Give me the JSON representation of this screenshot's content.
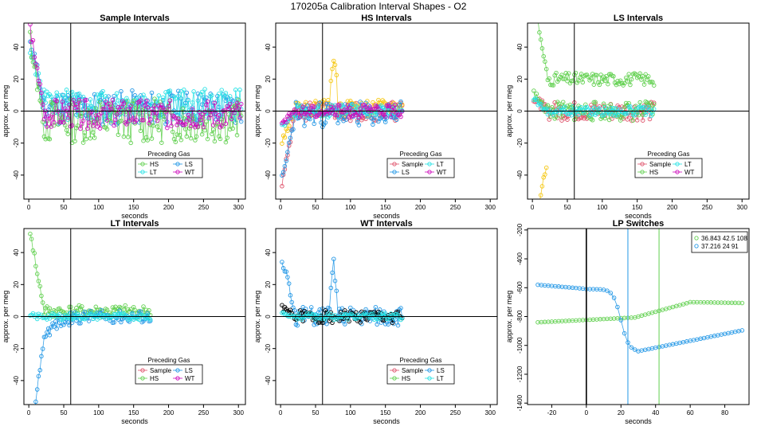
{
  "page_title": "170205a   Calibration Interval Shapes - O2",
  "colors": {
    "Sample": "#df536b",
    "HS": "#61d04f",
    "LS": "#2297e6",
    "LT": "#28e2e5",
    "WT": "#cd0bbc",
    "HS_yellow": "#f5c710",
    "black": "#000000"
  },
  "chart_data": [
    {
      "id": "sample",
      "type": "scatter",
      "title": "Sample Intervals",
      "xlabel": "seconds",
      "ylabel": "approx. per meg",
      "xlim": [
        -7,
        310
      ],
      "ylim": [
        -55,
        55
      ],
      "xticks": [
        0,
        50,
        100,
        150,
        200,
        250,
        300
      ],
      "yticks": [
        -40,
        -20,
        0,
        20,
        40
      ],
      "vline": 60,
      "hline": 0,
      "legend": {
        "title": "Preceding Gas",
        "entries": [
          "HS",
          "LS",
          "LT",
          "WT"
        ],
        "columns": 2
      },
      "series": [
        {
          "name": "LS",
          "color": "LS",
          "xmax": 305,
          "base": 2,
          "noise": 11,
          "spike": 48,
          "seed": 11
        },
        {
          "name": "LT",
          "color": "LT",
          "xmax": 305,
          "base": 4,
          "noise": 10,
          "spike": 40,
          "seed": 12
        },
        {
          "name": "HS",
          "color": "HS",
          "xmax": 305,
          "base": -6,
          "noise": 14,
          "spike": 55,
          "seed": 13
        },
        {
          "name": "WT",
          "color": "WT",
          "xmax": 305,
          "base": -2,
          "noise": 9,
          "spike": 60,
          "seed": 14
        }
      ]
    },
    {
      "id": "hs",
      "type": "scatter",
      "title": "HS Intervals",
      "xlabel": "seconds",
      "ylabel": "approx. per meg",
      "xlim": [
        -7,
        310
      ],
      "ylim": [
        -55,
        55
      ],
      "xticks": [
        0,
        50,
        100,
        150,
        200,
        250,
        300
      ],
      "yticks": [
        -40,
        -20,
        0,
        20,
        40
      ],
      "vline": 60,
      "hline": 0,
      "legend": {
        "title": "Preceding Gas",
        "entries": [
          "Sample",
          "LT",
          "LS",
          "WT"
        ],
        "columns": 2
      },
      "series": [
        {
          "name": "Sample",
          "color": "Sample",
          "xmax": 175,
          "base": 0,
          "noise": 6,
          "spike": -50,
          "seed": 21
        },
        {
          "name": "HS",
          "color": "HS_yellow",
          "xmax": 175,
          "base": 2,
          "noise": 5,
          "spike": -22,
          "bump": 32,
          "seed": 22
        },
        {
          "name": "LS",
          "color": "LS",
          "xmax": 175,
          "base": -2,
          "noise": 8,
          "spike": -45,
          "seed": 23
        },
        {
          "name": "LT",
          "color": "LT",
          "xmax": 175,
          "base": 0,
          "noise": 4,
          "spike": -10,
          "seed": 24
        },
        {
          "name": "WT",
          "color": "WT",
          "xmax": 175,
          "base": 0,
          "noise": 4,
          "spike": -8,
          "seed": 25
        }
      ]
    },
    {
      "id": "ls",
      "type": "scatter",
      "title": "LS Intervals",
      "xlabel": "seconds",
      "ylabel": "approx. per meg",
      "xlim": [
        -7,
        310
      ],
      "ylim": [
        -55,
        55
      ],
      "xticks": [
        0,
        50,
        100,
        150,
        200,
        250,
        300
      ],
      "yticks": [
        -40,
        -20,
        0,
        20,
        40
      ],
      "vline": 60,
      "hline": 0,
      "legend": {
        "title": "Preceding Gas",
        "entries": [
          "Sample",
          "LT",
          "HS",
          "WT"
        ],
        "columns": 2
      },
      "series": [
        {
          "name": "HS",
          "color": "HS",
          "xmax": 175,
          "base": 20,
          "noise": 4,
          "spike": 55,
          "seed": 31
        },
        {
          "name": "Sample",
          "color": "Sample",
          "xmax": 175,
          "base": 0,
          "noise": 6,
          "spike": 10,
          "seed": 32
        },
        {
          "name": "HS2",
          "color": "HS",
          "xmax": 175,
          "base": 0,
          "noise": 6,
          "spike": 12,
          "seed": 33
        },
        {
          "name": "Yellow",
          "color": "HS_yellow",
          "xmax": 20,
          "base": -30,
          "noise": 6,
          "spike": -45,
          "seed": 34
        },
        {
          "name": "LT",
          "color": "LT",
          "xmax": 175,
          "base": 0,
          "noise": 3,
          "spike": 8,
          "seed": 35
        }
      ]
    },
    {
      "id": "lt",
      "type": "scatter",
      "title": "LT Intervals",
      "xlabel": "seconds",
      "ylabel": "approx. per meg",
      "xlim": [
        -7,
        310
      ],
      "ylim": [
        -55,
        55
      ],
      "xticks": [
        0,
        50,
        100,
        150,
        200,
        250,
        300
      ],
      "yticks": [
        -40,
        -20,
        0,
        20,
        40
      ],
      "vline": 60,
      "hline": 0,
      "legend": {
        "title": "Preceding Gas",
        "entries": [
          "Sample",
          "LS",
          "HS",
          "WT"
        ],
        "columns": 2
      },
      "series": [
        {
          "name": "HS",
          "color": "HS",
          "xmax": 175,
          "base": 3,
          "noise": 4,
          "spike": 55,
          "seed": 41
        },
        {
          "name": "LS",
          "color": "LS",
          "xmax": 175,
          "base": 0,
          "noise": 4,
          "spike": -55,
          "decay": true,
          "seed": 42
        },
        {
          "name": "LT",
          "color": "LT",
          "xmax": 175,
          "base": 0,
          "noise": 2,
          "spike": 0,
          "seed": 43
        }
      ]
    },
    {
      "id": "wt",
      "type": "scatter",
      "title": "WT Intervals",
      "xlabel": "seconds",
      "ylabel": "approx. per meg",
      "xlim": [
        -7,
        310
      ],
      "ylim": [
        -55,
        55
      ],
      "xticks": [
        0,
        50,
        100,
        150,
        200,
        250,
        300
      ],
      "yticks": [
        -40,
        -20,
        0,
        20,
        40
      ],
      "vline": 60,
      "hline": 0,
      "legend": {
        "title": "Preceding Gas",
        "entries": [
          "Sample",
          "LS",
          "HS",
          "LT"
        ],
        "columns": 2
      },
      "series": [
        {
          "name": "LS",
          "color": "LS",
          "xmax": 175,
          "base": 0,
          "noise": 6,
          "spike": 40,
          "bump": 30,
          "seed": 51
        },
        {
          "name": "Black",
          "color": "black",
          "xmax": 175,
          "base": 0,
          "noise": 4,
          "spike": 6,
          "seed": 52
        },
        {
          "name": "LT",
          "color": "LT",
          "xmax": 175,
          "base": 0,
          "noise": 2,
          "spike": 2,
          "seed": 53
        }
      ]
    },
    {
      "id": "lp",
      "type": "line",
      "title": "LP Switches",
      "xlabel": "seconds",
      "ylabel": "approx. per meg",
      "xlim": [
        -34,
        94
      ],
      "ylim": [
        -1410,
        -190
      ],
      "xticks": [
        -20,
        0,
        20,
        40,
        60,
        80
      ],
      "yticks": [
        -1400,
        -1200,
        -1000,
        -800,
        -600,
        -400,
        -200
      ],
      "vline": 0,
      "vlines_colored": [
        {
          "x": 24,
          "color": "LS"
        },
        {
          "x": 42,
          "color": "HS"
        }
      ],
      "legend": {
        "entries": [
          "36.843 42.5 108",
          "37.216 24 91"
        ],
        "colors": [
          "HS",
          "LS"
        ],
        "columns": 1
      },
      "series": [
        {
          "name": "36.843 42.5 108",
          "color": "HS",
          "kind": "lp_green"
        },
        {
          "name": "37.216 24 91",
          "color": "LS",
          "kind": "lp_blue"
        }
      ]
    }
  ]
}
